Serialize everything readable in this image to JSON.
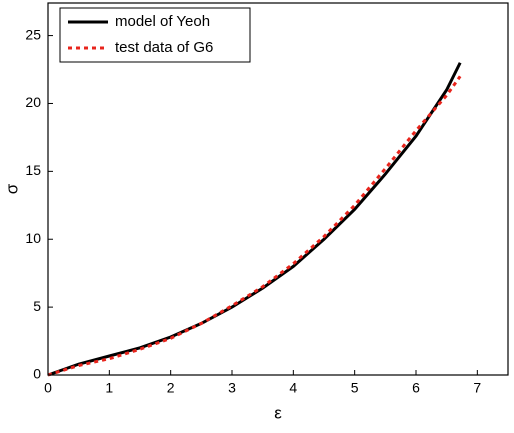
{
  "chart_data": {
    "type": "line",
    "x_label": "ε",
    "y_label": "σ",
    "x": [
      0,
      0.5,
      1,
      1.5,
      2,
      2.5,
      3,
      3.5,
      4,
      4.5,
      5,
      5.5,
      6,
      6.5,
      6.72
    ],
    "series": [
      {
        "name": "model of Yeoh",
        "color": "#000000",
        "dash": "solid",
        "values": [
          0,
          0.8,
          1.4,
          2.0,
          2.8,
          3.8,
          5.0,
          6.4,
          8.0,
          10.0,
          12.2,
          14.8,
          17.6,
          21.0,
          23.0
        ]
      },
      {
        "name": "test data of G6",
        "color": "#e8241c",
        "dash": "dotted",
        "values": [
          0,
          0.7,
          1.2,
          1.9,
          2.7,
          3.8,
          5.1,
          6.5,
          8.2,
          10.2,
          12.5,
          15.2,
          18.0,
          20.6,
          22.0
        ]
      }
    ],
    "xlim": [
      0,
      7.5
    ],
    "ylim": [
      0,
      27.4
    ],
    "xticks": [
      0,
      1,
      2,
      3,
      4,
      5,
      6,
      7
    ],
    "yticks": [
      0,
      5,
      10,
      15,
      20,
      25
    ],
    "legend": "upper-left"
  }
}
